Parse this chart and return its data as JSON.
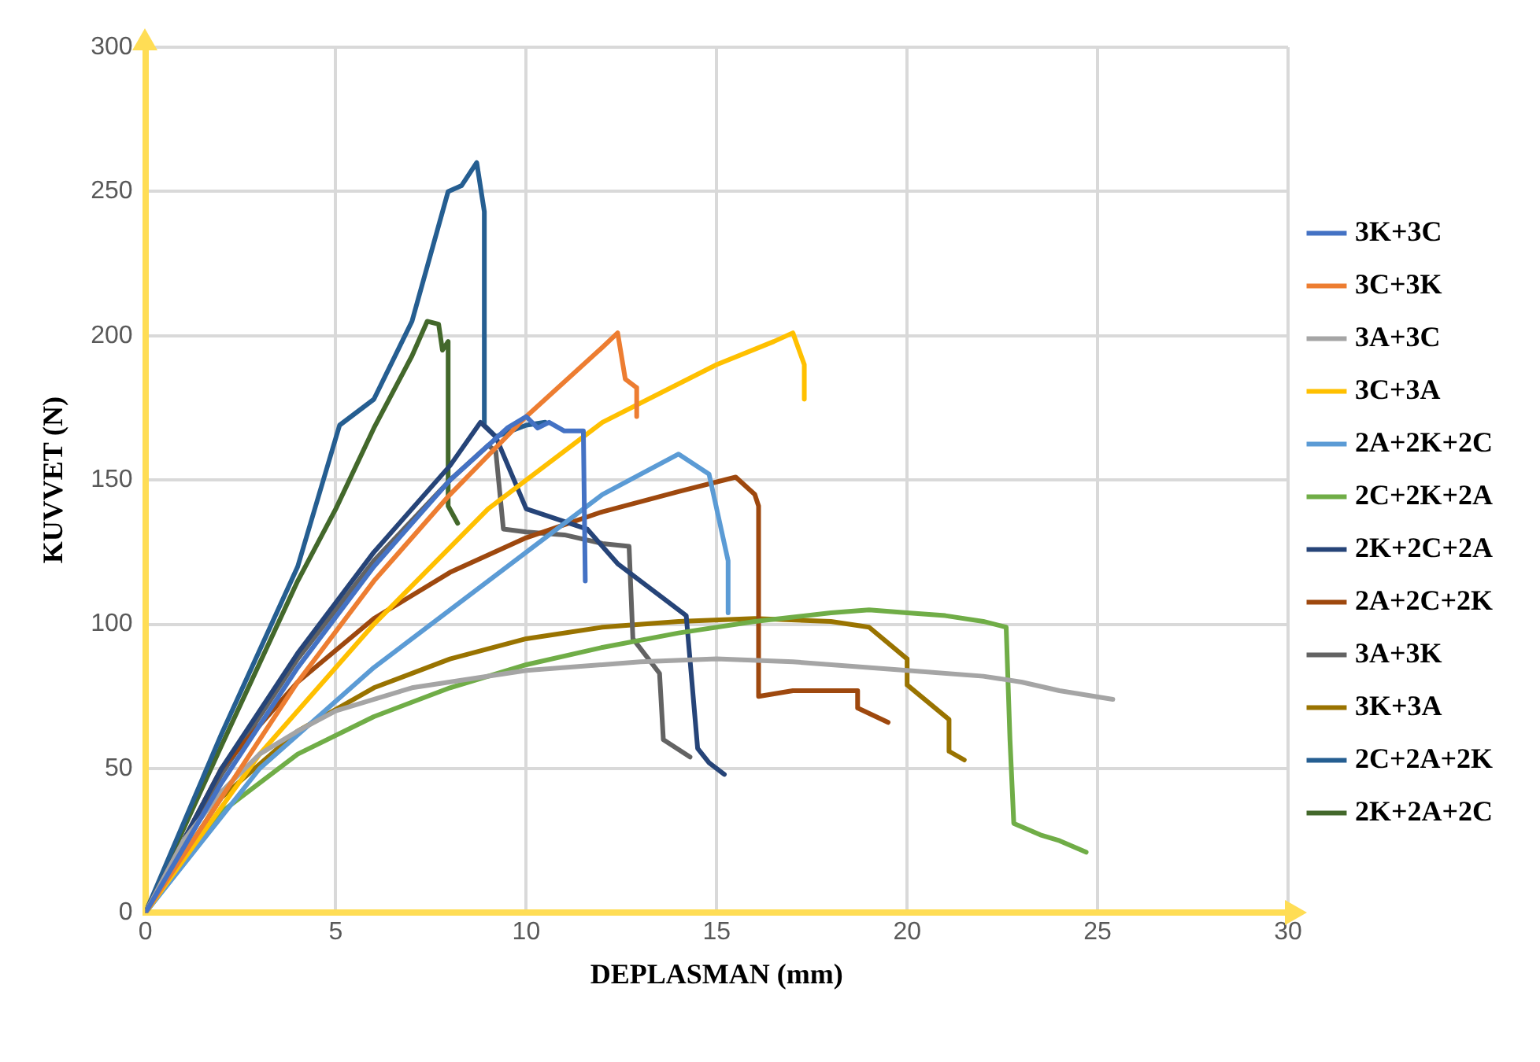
{
  "chart_data": {
    "type": "line",
    "xlabel": "DEPLASMAN (mm)",
    "ylabel": "KUVVET (N)",
    "xlim": [
      0,
      30
    ],
    "xticks": [
      0,
      5,
      10,
      15,
      20,
      25,
      30
    ],
    "ylim": [
      0,
      300
    ],
    "yticks": [
      0,
      50,
      100,
      150,
      200,
      250,
      300
    ],
    "grid": true,
    "legend": "right",
    "marker": "none",
    "line_style": "solid",
    "series": [
      {
        "name": "3K+3C",
        "color": "#4472c4",
        "x": [
          0,
          2,
          4,
          6,
          8,
          9.5,
          10,
          10.3,
          10.6,
          11,
          11.5,
          11.55
        ],
        "values": [
          0,
          45,
          85,
          120,
          150,
          168,
          172,
          168,
          170,
          167,
          167,
          115
        ]
      },
      {
        "name": "3C+3K",
        "color": "#ed7d31",
        "x": [
          0,
          2,
          4,
          6,
          8,
          10,
          12,
          12.4,
          12.6,
          12.9,
          12.9
        ],
        "values": [
          0,
          40,
          80,
          115,
          145,
          172,
          196,
          201,
          185,
          182,
          172
        ]
      },
      {
        "name": "3A+3C",
        "color": "#a5a5a5",
        "x": [
          0,
          1,
          2,
          3,
          4,
          5,
          7,
          10,
          13,
          15,
          17,
          20,
          22,
          23,
          24,
          25.4
        ],
        "values": [
          0,
          25,
          42,
          55,
          63,
          70,
          78,
          84,
          87,
          88,
          87,
          84,
          82,
          80,
          77,
          74
        ]
      },
      {
        "name": "3C+3A",
        "color": "#ffc000",
        "x": [
          0,
          3,
          6,
          9,
          12,
          15,
          16.5,
          17,
          17.3,
          17.3
        ],
        "values": [
          0,
          55,
          100,
          140,
          170,
          190,
          198,
          201,
          190,
          178
        ]
      },
      {
        "name": "2A+2K+2C",
        "color": "#5b9bd5",
        "x": [
          0,
          3,
          6,
          9,
          12,
          14,
          14.8,
          15.3,
          15.3
        ],
        "values": [
          0,
          50,
          85,
          115,
          145,
          159,
          152,
          122,
          104
        ]
      },
      {
        "name": "2C+2K+2A",
        "color": "#70ad47",
        "x": [
          0,
          2,
          4,
          6,
          8,
          10,
          12,
          14,
          16,
          18,
          19,
          20,
          21,
          22,
          22.6,
          22.7,
          22.8,
          23.5,
          24,
          24.7
        ],
        "values": [
          0,
          35,
          55,
          68,
          78,
          86,
          92,
          97,
          101,
          104,
          105,
          104,
          103,
          101,
          99,
          60,
          31,
          27,
          25,
          21
        ]
      },
      {
        "name": "2K+2C+2A",
        "color": "#264478",
        "x": [
          0,
          2,
          4,
          6,
          8,
          8.8,
          9.2,
          10,
          11.6,
          12.4,
          13,
          14.2,
          14.5,
          14.8,
          15.2
        ],
        "values": [
          0,
          50,
          90,
          125,
          155,
          170,
          165,
          140,
          133,
          121,
          115,
          103,
          57,
          52,
          48
        ]
      },
      {
        "name": "2A+2C+2K",
        "color": "#9e480e",
        "x": [
          0,
          2,
          4,
          6,
          8,
          10,
          12,
          14,
          15.5,
          16,
          16.1,
          16.1,
          17,
          18.7,
          18.7,
          19.5
        ],
        "values": [
          0,
          50,
          80,
          102,
          118,
          130,
          139,
          146,
          151,
          145,
          141,
          75,
          77,
          77,
          71,
          66
        ]
      },
      {
        "name": "3A+3K",
        "color": "#636363",
        "x": [
          0,
          2,
          4,
          6,
          8,
          9,
          9.2,
          9.4,
          10,
          11,
          12,
          12.7,
          12.8,
          13.5,
          13.6,
          14.3
        ],
        "values": [
          0,
          48,
          88,
          122,
          150,
          162,
          160,
          133,
          132,
          131,
          128,
          127,
          95,
          83,
          60,
          54
        ]
      },
      {
        "name": "3K+3A",
        "color": "#997300",
        "x": [
          0,
          2,
          4,
          6,
          8,
          10,
          12,
          14,
          16,
          18,
          19,
          20,
          20,
          21.1,
          21.1,
          21.5
        ],
        "values": [
          0,
          40,
          63,
          78,
          88,
          95,
          99,
          101,
          102,
          101,
          99,
          88,
          79,
          67,
          56,
          53
        ]
      },
      {
        "name": "2C+2A+2K",
        "color": "#255e91",
        "x": [
          0,
          2,
          4,
          5.1,
          6,
          7,
          7.95,
          8.3,
          8.7,
          8.9,
          8.9,
          9.2,
          10,
          10.5
        ],
        "values": [
          0,
          62,
          120,
          169,
          178,
          205,
          250,
          252,
          260,
          243,
          169,
          165,
          169,
          170
        ]
      },
      {
        "name": "2K+2A+2C",
        "color": "#43682b",
        "x": [
          0,
          2,
          4,
          5,
          6,
          7,
          7.4,
          7.7,
          7.8,
          7.95,
          7.95,
          8.2
        ],
        "values": [
          0,
          58,
          115,
          140,
          168,
          193,
          205,
          204,
          195,
          198,
          141,
          135
        ]
      }
    ]
  }
}
